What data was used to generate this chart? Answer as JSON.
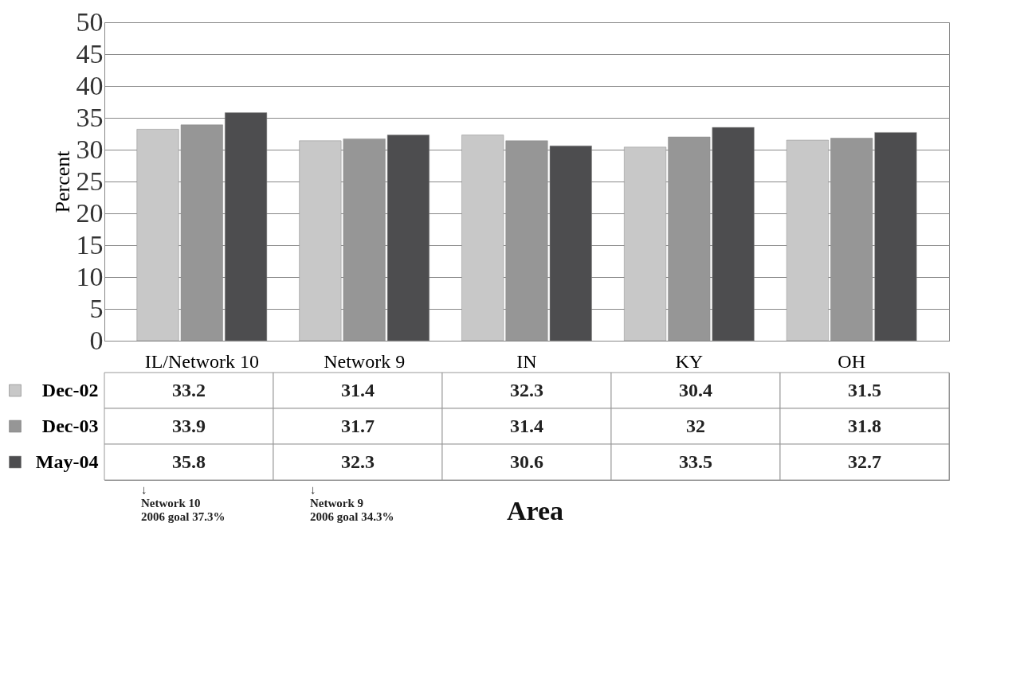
{
  "chart_data": {
    "type": "bar",
    "xlabel": "Area",
    "ylabel": "Percent",
    "categories": [
      "IL/Network 10",
      "Network 9",
      "IN",
      "KY",
      "OH"
    ],
    "series": [
      {
        "name": "Dec-02",
        "color": "#c8c8c8",
        "values": [
          33.2,
          31.4,
          32.3,
          30.4,
          31.5
        ]
      },
      {
        "name": "Dec-03",
        "color": "#969696",
        "values": [
          33.9,
          31.7,
          31.4,
          32,
          31.8
        ]
      },
      {
        "name": "May-04",
        "color": "#4d4d4f",
        "values": [
          35.8,
          32.3,
          30.6,
          33.5,
          32.7
        ]
      }
    ],
    "ylim": [
      0,
      50
    ],
    "yticks": [
      0,
      5,
      10,
      15,
      20,
      25,
      30,
      35,
      40,
      45,
      50
    ],
    "grid": "y",
    "legend": "bottom",
    "data_labels": true,
    "annotations": [
      "↓\nNetwork 10\n2006 goal  37.3%",
      "↓\nNetwork 9\n2006 goal  34.3%"
    ]
  }
}
